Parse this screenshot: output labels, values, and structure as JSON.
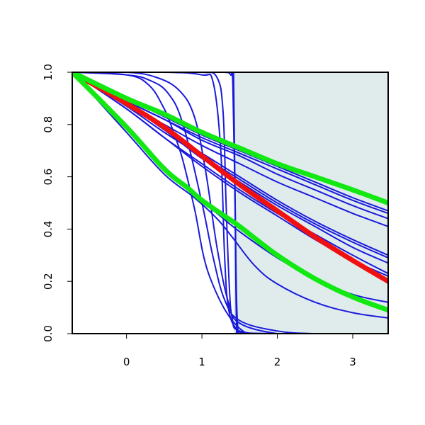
{
  "chart_data": {
    "type": "line",
    "title": "",
    "xlabel": "",
    "ylabel": "",
    "xlim": [
      -0.72,
      3.47
    ],
    "ylim": [
      0.0,
      1.0
    ],
    "x_ticks": [
      0,
      1,
      2,
      3
    ],
    "y_ticks": [
      0.0,
      0.2,
      0.4,
      0.6,
      0.8,
      1.0
    ],
    "x_tick_labels": [
      "0",
      "1",
      "2",
      "3"
    ],
    "y_tick_labels": [
      "0.0",
      "0.2",
      "0.4",
      "0.6",
      "0.8",
      "1.0"
    ],
    "grid": false,
    "legend": "none",
    "shaded_region": {
      "x_from": 1.42,
      "x_to": 3.47,
      "color": "#e0ecec"
    },
    "colors": {
      "thin_series": "#1a1adc",
      "red": "#f01010",
      "green": "#12e812",
      "axis": "#000000"
    },
    "series": [
      {
        "color": "#f01010",
        "width": "thick",
        "x": [
          -0.72,
          0.0,
          0.5,
          1.0,
          1.5,
          2.0,
          2.5,
          3.0,
          3.47
        ],
        "y": [
          1.0,
          0.88,
          0.79,
          0.68,
          0.57,
          0.47,
          0.37,
          0.28,
          0.2
        ]
      },
      {
        "color": "#12e812",
        "width": "thick",
        "x": [
          -0.72,
          0.0,
          0.5,
          1.0,
          1.5,
          2.0,
          2.5,
          3.0,
          3.47
        ],
        "y": [
          1.0,
          0.9,
          0.84,
          0.77,
          0.71,
          0.65,
          0.6,
          0.55,
          0.5
        ]
      },
      {
        "color": "#12e812",
        "width": "thick",
        "x": [
          -0.72,
          0.0,
          0.5,
          0.8,
          1.0,
          1.3,
          1.5,
          2.0,
          2.5,
          3.0,
          3.47
        ],
        "y": [
          1.0,
          0.79,
          0.63,
          0.56,
          0.51,
          0.45,
          0.41,
          0.3,
          0.21,
          0.14,
          0.09
        ]
      },
      {
        "color": "#1a1adc",
        "width": "thin",
        "x": [
          -0.72,
          0.0,
          0.5,
          1.0,
          1.5,
          2.0,
          2.5,
          3.0,
          3.47
        ],
        "y": [
          1.0,
          0.9,
          0.83,
          0.76,
          0.7,
          0.64,
          0.58,
          0.52,
          0.47
        ]
      },
      {
        "color": "#1a1adc",
        "width": "thin",
        "x": [
          -0.72,
          0.0,
          0.5,
          1.0,
          1.5,
          2.0,
          2.5,
          3.0,
          3.47
        ],
        "y": [
          1.0,
          0.89,
          0.82,
          0.75,
          0.69,
          0.63,
          0.57,
          0.51,
          0.46
        ]
      },
      {
        "color": "#1a1adc",
        "width": "thin",
        "x": [
          -0.72,
          0.0,
          0.5,
          1.0,
          1.5,
          2.0,
          2.5,
          3.0,
          3.47
        ],
        "y": [
          1.0,
          0.89,
          0.82,
          0.74,
          0.68,
          0.61,
          0.55,
          0.49,
          0.44
        ]
      },
      {
        "color": "#1a1adc",
        "width": "thin",
        "x": [
          -0.72,
          0.0,
          0.5,
          1.0,
          1.5,
          2.0,
          2.5,
          3.0,
          3.47
        ],
        "y": [
          1.0,
          0.88,
          0.8,
          0.72,
          0.65,
          0.58,
          0.52,
          0.46,
          0.41
        ]
      },
      {
        "color": "#1a1adc",
        "width": "thin",
        "x": [
          -0.72,
          0.0,
          0.5,
          1.0,
          1.5,
          2.0,
          2.5,
          3.0,
          3.47
        ],
        "y": [
          1.0,
          0.88,
          0.78,
          0.69,
          0.6,
          0.51,
          0.43,
          0.36,
          0.3
        ]
      },
      {
        "color": "#1a1adc",
        "width": "thin",
        "x": [
          -0.72,
          0.0,
          0.5,
          1.0,
          1.5,
          2.0,
          2.5,
          3.0,
          3.47
        ],
        "y": [
          1.0,
          0.87,
          0.77,
          0.68,
          0.59,
          0.5,
          0.42,
          0.35,
          0.29
        ]
      },
      {
        "color": "#1a1adc",
        "width": "thin",
        "x": [
          -0.72,
          0.0,
          0.5,
          1.0,
          1.5,
          2.0,
          2.5,
          3.0,
          3.47
        ],
        "y": [
          1.0,
          0.88,
          0.78,
          0.67,
          0.58,
          0.49,
          0.41,
          0.33,
          0.27
        ]
      },
      {
        "color": "#1a1adc",
        "width": "thin",
        "x": [
          -0.72,
          0.0,
          0.5,
          1.0,
          1.5,
          2.0,
          2.5,
          3.0,
          3.47
        ],
        "y": [
          1.0,
          0.86,
          0.75,
          0.65,
          0.55,
          0.46,
          0.38,
          0.3,
          0.23
        ]
      },
      {
        "color": "#1a1adc",
        "width": "thin",
        "x": [
          -0.72,
          0.0,
          0.5,
          1.0,
          1.5,
          2.0,
          2.5,
          3.0,
          3.47
        ],
        "y": [
          1.0,
          0.86,
          0.75,
          0.64,
          0.54,
          0.45,
          0.36,
          0.28,
          0.22
        ]
      },
      {
        "color": "#1a1adc",
        "width": "thin",
        "x": [
          -0.72,
          0.0,
          0.5,
          0.9,
          1.2,
          1.5,
          2.0,
          2.5,
          3.0,
          3.47
        ],
        "y": [
          1.0,
          0.79,
          0.64,
          0.53,
          0.46,
          0.39,
          0.29,
          0.21,
          0.15,
          0.12
        ]
      },
      {
        "color": "#1a1adc",
        "width": "thin",
        "x": [
          -0.72,
          0.0,
          0.5,
          0.9,
          1.2,
          1.4,
          1.7,
          2.0,
          2.5,
          3.0,
          3.47
        ],
        "y": [
          1.0,
          0.77,
          0.61,
          0.52,
          0.44,
          0.37,
          0.26,
          0.19,
          0.12,
          0.08,
          0.06
        ]
      },
      {
        "color": "#1a1adc",
        "width": "thin",
        "x": [
          -0.72,
          0.0,
          0.3,
          0.55,
          0.75,
          1.0,
          1.15,
          1.3,
          1.5,
          2.0,
          2.5,
          3.0,
          3.47
        ],
        "y": [
          1.0,
          0.99,
          0.97,
          0.92,
          0.8,
          0.5,
          0.29,
          0.13,
          0.05,
          0.01,
          0.0,
          0.0,
          0.0
        ]
      },
      {
        "color": "#1a1adc",
        "width": "thin",
        "x": [
          -0.72,
          0.0,
          0.4,
          0.7,
          0.9,
          1.05,
          1.2,
          1.35,
          1.5,
          2.0,
          2.5,
          3.0,
          3.47
        ],
        "y": [
          1.0,
          1.0,
          0.98,
          0.93,
          0.83,
          0.62,
          0.33,
          0.12,
          0.04,
          0.0,
          0.0,
          0.0,
          0.0
        ]
      },
      {
        "color": "#1a1adc",
        "width": "thin",
        "x": [
          -0.72,
          0.0,
          0.3,
          0.5,
          0.6,
          0.65,
          0.75,
          0.9,
          1.1,
          1.5,
          2.0,
          3.47
        ],
        "y": [
          1.0,
          0.99,
          0.95,
          0.86,
          0.79,
          0.75,
          0.66,
          0.48,
          0.22,
          0.02,
          0.0,
          0.0
        ]
      },
      {
        "color": "#1a1adc",
        "width": "thin",
        "x": [
          -0.72,
          0.5,
          1.0,
          1.15,
          1.25,
          1.3,
          1.35,
          1.45,
          1.6,
          2.0,
          3.47
        ],
        "y": [
          1.0,
          1.0,
          0.99,
          0.96,
          0.7,
          0.3,
          0.1,
          0.02,
          0.0,
          0.0,
          0.0
        ]
      },
      {
        "color": "#1a1adc",
        "width": "thin",
        "x": [
          -0.72,
          0.5,
          1.0,
          1.2,
          1.28,
          1.32,
          1.36,
          1.4,
          1.5,
          2.0,
          3.47
        ],
        "y": [
          1.0,
          1.0,
          1.0,
          0.98,
          0.85,
          0.5,
          0.2,
          0.06,
          0.01,
          0.0,
          0.0
        ]
      },
      {
        "color": "#1a1adc",
        "width": "thin",
        "x": [
          -0.72,
          0.5,
          1.0,
          1.3,
          1.38,
          1.41,
          1.44,
          1.47,
          1.55,
          2.0,
          3.47
        ],
        "y": [
          1.0,
          1.0,
          1.0,
          1.0,
          0.99,
          0.95,
          0.5,
          0.05,
          0.0,
          0.0,
          0.0
        ]
      },
      {
        "color": "#1a1adc",
        "width": "thin",
        "x": [
          -0.72,
          1.0,
          1.4,
          1.42,
          1.44,
          1.46,
          1.5,
          3.47
        ],
        "y": [
          1.0,
          1.0,
          1.0,
          0.98,
          0.5,
          0.02,
          0.0,
          0.0
        ]
      }
    ]
  }
}
